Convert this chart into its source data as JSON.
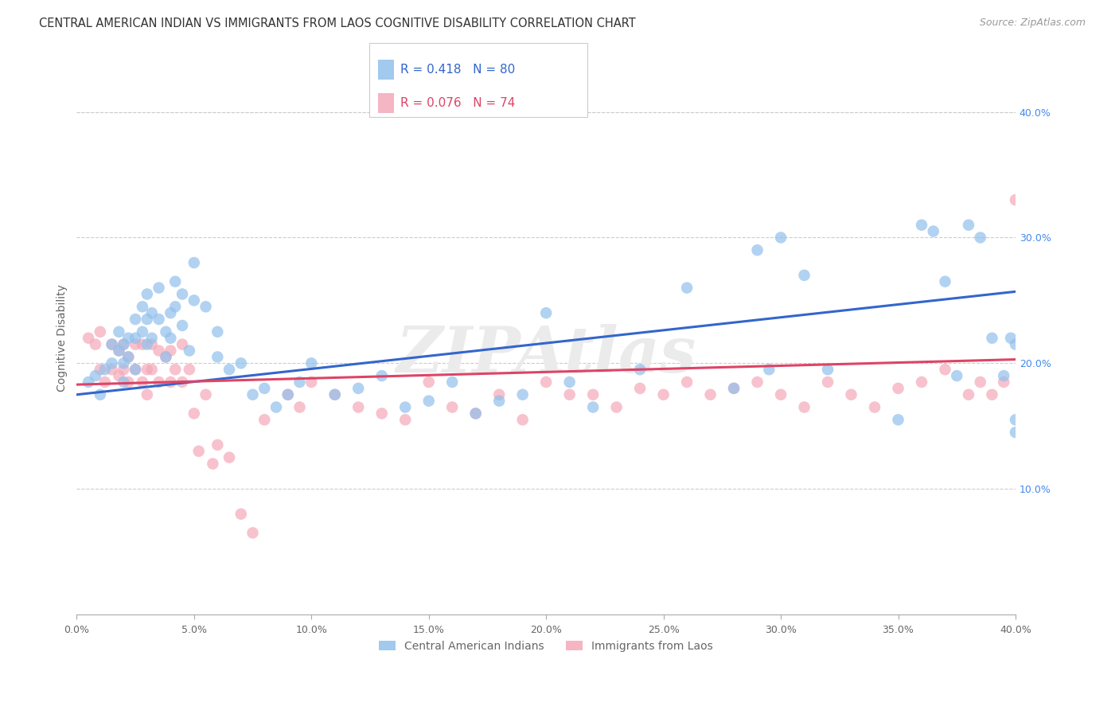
{
  "title": "CENTRAL AMERICAN INDIAN VS IMMIGRANTS FROM LAOS COGNITIVE DISABILITY CORRELATION CHART",
  "source": "Source: ZipAtlas.com",
  "ylabel": "Cognitive Disability",
  "xlim": [
    0.0,
    0.4
  ],
  "ylim": [
    0.0,
    0.44
  ],
  "xticks": [
    0.0,
    0.05,
    0.1,
    0.15,
    0.2,
    0.25,
    0.3,
    0.35,
    0.4
  ],
  "yticks_right": [
    0.1,
    0.2,
    0.3,
    0.4
  ],
  "blue_R": 0.418,
  "blue_N": 80,
  "pink_R": 0.076,
  "pink_N": 74,
  "blue_color": "#92C0EC",
  "pink_color": "#F4A8B8",
  "blue_line_color": "#3366CC",
  "pink_line_color": "#DD4466",
  "legend_label_blue": "Central American Indians",
  "legend_label_pink": "Immigrants from Laos",
  "watermark": "ZIPAtlas",
  "blue_x": [
    0.005,
    0.008,
    0.01,
    0.012,
    0.015,
    0.015,
    0.018,
    0.018,
    0.02,
    0.02,
    0.02,
    0.022,
    0.022,
    0.025,
    0.025,
    0.025,
    0.028,
    0.028,
    0.03,
    0.03,
    0.03,
    0.032,
    0.032,
    0.035,
    0.035,
    0.038,
    0.038,
    0.04,
    0.04,
    0.042,
    0.042,
    0.045,
    0.045,
    0.048,
    0.05,
    0.05,
    0.055,
    0.06,
    0.06,
    0.065,
    0.07,
    0.075,
    0.08,
    0.085,
    0.09,
    0.095,
    0.1,
    0.11,
    0.12,
    0.13,
    0.14,
    0.15,
    0.16,
    0.17,
    0.18,
    0.19,
    0.2,
    0.21,
    0.22,
    0.24,
    0.26,
    0.28,
    0.29,
    0.295,
    0.3,
    0.31,
    0.32,
    0.35,
    0.36,
    0.365,
    0.37,
    0.375,
    0.38,
    0.385,
    0.39,
    0.395,
    0.398,
    0.4,
    0.4,
    0.4
  ],
  "blue_y": [
    0.185,
    0.19,
    0.175,
    0.195,
    0.215,
    0.2,
    0.225,
    0.21,
    0.215,
    0.2,
    0.185,
    0.22,
    0.205,
    0.235,
    0.22,
    0.195,
    0.245,
    0.225,
    0.255,
    0.235,
    0.215,
    0.24,
    0.22,
    0.26,
    0.235,
    0.225,
    0.205,
    0.24,
    0.22,
    0.265,
    0.245,
    0.255,
    0.23,
    0.21,
    0.28,
    0.25,
    0.245,
    0.205,
    0.225,
    0.195,
    0.2,
    0.175,
    0.18,
    0.165,
    0.175,
    0.185,
    0.2,
    0.175,
    0.18,
    0.19,
    0.165,
    0.17,
    0.185,
    0.16,
    0.17,
    0.175,
    0.24,
    0.185,
    0.165,
    0.195,
    0.26,
    0.18,
    0.29,
    0.195,
    0.3,
    0.27,
    0.195,
    0.155,
    0.31,
    0.305,
    0.265,
    0.19,
    0.31,
    0.3,
    0.22,
    0.19,
    0.22,
    0.155,
    0.145,
    0.215
  ],
  "pink_x": [
    0.005,
    0.008,
    0.01,
    0.01,
    0.012,
    0.015,
    0.015,
    0.018,
    0.018,
    0.02,
    0.02,
    0.022,
    0.022,
    0.025,
    0.025,
    0.028,
    0.028,
    0.03,
    0.03,
    0.032,
    0.032,
    0.035,
    0.035,
    0.038,
    0.04,
    0.04,
    0.042,
    0.045,
    0.045,
    0.048,
    0.05,
    0.052,
    0.055,
    0.058,
    0.06,
    0.065,
    0.07,
    0.075,
    0.08,
    0.09,
    0.095,
    0.1,
    0.11,
    0.12,
    0.13,
    0.14,
    0.15,
    0.16,
    0.17,
    0.18,
    0.19,
    0.2,
    0.21,
    0.22,
    0.23,
    0.24,
    0.25,
    0.26,
    0.27,
    0.28,
    0.29,
    0.3,
    0.31,
    0.32,
    0.33,
    0.34,
    0.35,
    0.36,
    0.37,
    0.38,
    0.385,
    0.39,
    0.395,
    0.4
  ],
  "pink_y": [
    0.22,
    0.215,
    0.225,
    0.195,
    0.185,
    0.215,
    0.195,
    0.21,
    0.19,
    0.215,
    0.195,
    0.205,
    0.185,
    0.215,
    0.195,
    0.215,
    0.185,
    0.195,
    0.175,
    0.215,
    0.195,
    0.21,
    0.185,
    0.205,
    0.21,
    0.185,
    0.195,
    0.215,
    0.185,
    0.195,
    0.16,
    0.13,
    0.175,
    0.12,
    0.135,
    0.125,
    0.08,
    0.065,
    0.155,
    0.175,
    0.165,
    0.185,
    0.175,
    0.165,
    0.16,
    0.155,
    0.185,
    0.165,
    0.16,
    0.175,
    0.155,
    0.185,
    0.175,
    0.175,
    0.165,
    0.18,
    0.175,
    0.185,
    0.175,
    0.18,
    0.185,
    0.175,
    0.165,
    0.185,
    0.175,
    0.165,
    0.18,
    0.185,
    0.195,
    0.175,
    0.185,
    0.175,
    0.185,
    0.33
  ],
  "blue_trend_x": [
    0.0,
    0.4
  ],
  "blue_trend_y": [
    0.175,
    0.257
  ],
  "pink_trend_x": [
    0.0,
    0.4
  ],
  "pink_trend_y": [
    0.183,
    0.203
  ]
}
